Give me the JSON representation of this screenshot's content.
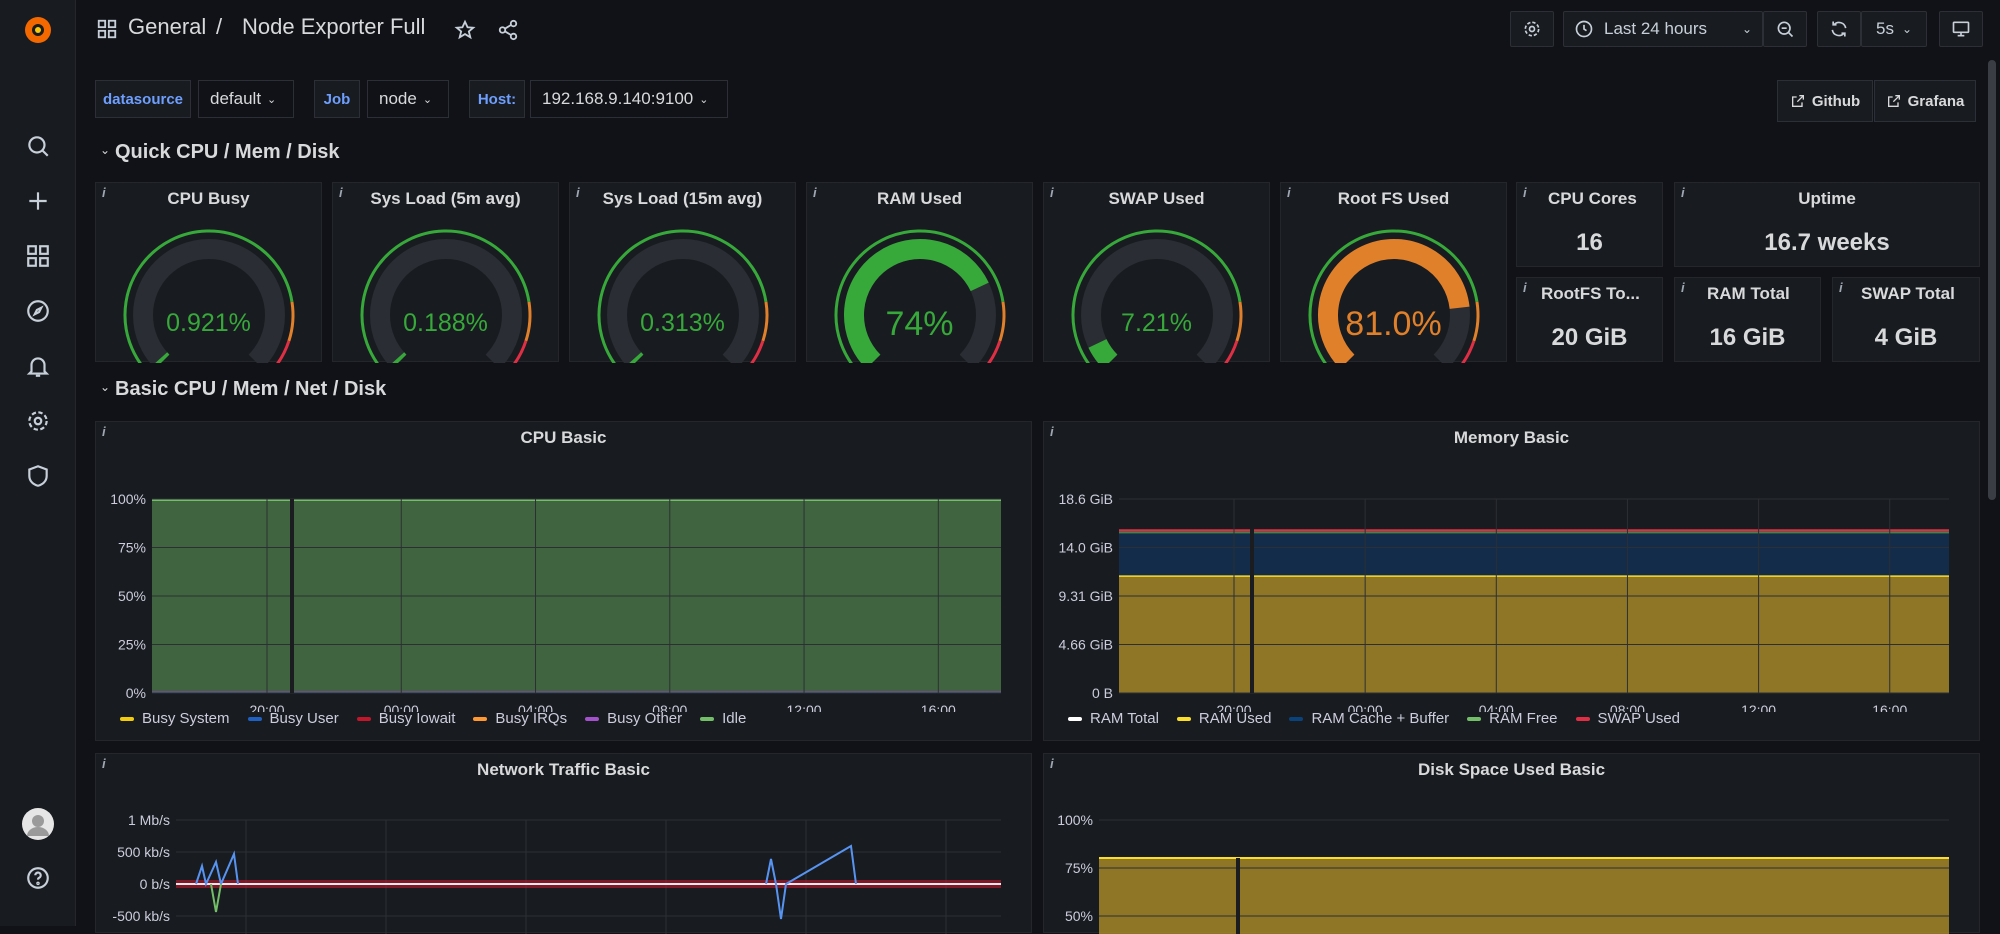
{
  "breadcrumb": {
    "folder": "General",
    "separator": "/",
    "dashboard": "Node Exporter Full"
  },
  "toolbar": {
    "time_range": "Last 24 hours",
    "refresh_interval": "5s"
  },
  "variables": [
    {
      "label": "datasource",
      "value": "default"
    },
    {
      "label": "Job",
      "value": "node"
    },
    {
      "label": "Host:",
      "value": "192.168.9.140:9100"
    }
  ],
  "links": {
    "github": "Github",
    "grafana": "Grafana"
  },
  "rows": {
    "quick": "Quick CPU / Mem / Disk",
    "basic": "Basic CPU / Mem / Net / Disk"
  },
  "gauges": [
    {
      "title": "CPU Busy",
      "value": "0.921%",
      "fraction": 0.0092,
      "color": "#37a83a"
    },
    {
      "title": "Sys Load (5m avg)",
      "value": "0.188%",
      "fraction": 0.0019,
      "color": "#37a83a"
    },
    {
      "title": "Sys Load (15m avg)",
      "value": "0.313%",
      "fraction": 0.0031,
      "color": "#37a83a"
    },
    {
      "title": "RAM Used",
      "value": "74%",
      "fraction": 0.74,
      "color": "#37a83a"
    },
    {
      "title": "SWAP Used",
      "value": "7.21%",
      "fraction": 0.0721,
      "color": "#37a83a"
    },
    {
      "title": "Root FS Used",
      "value": "81.0%",
      "fraction": 0.81,
      "color": "#e0802a"
    }
  ],
  "stats": {
    "cpu_cores": {
      "title": "CPU Cores",
      "value": "16"
    },
    "uptime": {
      "title": "Uptime",
      "value": "16.7 weeks"
    },
    "rootfs_total": {
      "title": "RootFS To...",
      "value": "20 GiB"
    },
    "ram_total": {
      "title": "RAM Total",
      "value": "16 GiB"
    },
    "swap_total": {
      "title": "SWAP Total",
      "value": "4 GiB"
    }
  },
  "panels": {
    "cpu_basic": "CPU Basic",
    "memory_basic": "Memory Basic",
    "network_basic": "Network Traffic Basic",
    "disk_basic": "Disk Space Used Basic"
  },
  "colors": {
    "accent": "#6e9fff",
    "green": "#37a83a",
    "orange": "#e0802a",
    "red": "#e02f44"
  },
  "chart_data": [
    {
      "type": "area",
      "title": "CPU Basic",
      "x_ticks": [
        "20:00",
        "00:00",
        "04:00",
        "08:00",
        "12:00",
        "16:00"
      ],
      "y_ticks": [
        "100%",
        "75%",
        "50%",
        "25%",
        "0%"
      ],
      "ylim": [
        0,
        100
      ],
      "series": [
        {
          "name": "Busy System",
          "color": "#f2cc0c",
          "value": 0.3
        },
        {
          "name": "Busy User",
          "color": "#1f60c4",
          "value": 0.5
        },
        {
          "name": "Busy Iowait",
          "color": "#c4162a",
          "value": 0.1
        },
        {
          "name": "Busy IRQs",
          "color": "#ff9830",
          "value": 0
        },
        {
          "name": "Busy Other",
          "color": "#a352cc",
          "value": 0
        },
        {
          "name": "Idle",
          "color": "#73bf69",
          "value": 99.1
        }
      ]
    },
    {
      "type": "area",
      "title": "Memory Basic",
      "x_ticks": [
        "20:00",
        "00:00",
        "04:00",
        "08:00",
        "12:00",
        "16:00"
      ],
      "y_ticks": [
        "18.6 GiB",
        "14.0 GiB",
        "9.31 GiB",
        "4.66 GiB",
        "0 B"
      ],
      "ylim": [
        0,
        18.6
      ],
      "series": [
        {
          "name": "RAM Total",
          "color": "#ffffff",
          "value": 15.6
        },
        {
          "name": "RAM Used",
          "color": "#fade2a",
          "value": 11.2
        },
        {
          "name": "RAM Cache + Buffer",
          "color": "#0a437c",
          "value": 4.1
        },
        {
          "name": "RAM Free",
          "color": "#73bf69",
          "value": 0.2
        },
        {
          "name": "SWAP Used",
          "color": "#e02f44",
          "value": 0.3
        }
      ]
    },
    {
      "type": "line",
      "title": "Network Traffic Basic",
      "y_ticks": [
        "1 Mb/s",
        "500 kb/s",
        "0 b/s",
        "-500 kb/s"
      ],
      "ylim": [
        -500,
        1000
      ]
    },
    {
      "type": "area",
      "title": "Disk Space Used Basic",
      "y_ticks": [
        "100%",
        "75%",
        "50%"
      ],
      "ylim": [
        50,
        100
      ],
      "series": [
        {
          "name": "/",
          "color": "#fade2a",
          "value": 81
        }
      ]
    }
  ]
}
